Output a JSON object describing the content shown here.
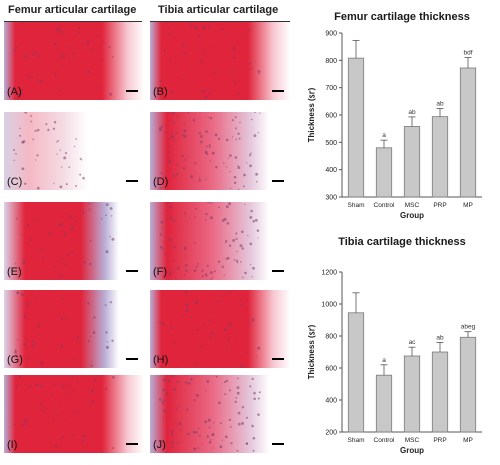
{
  "columns": {
    "femur_title": "Femur articular cartilage",
    "tibia_title": "Tibia articular cartilage"
  },
  "panels": [
    {
      "label": "(A)",
      "stain": "strong"
    },
    {
      "label": "(B)",
      "stain": "strong"
    },
    {
      "label": "(C)",
      "stain": "weak"
    },
    {
      "label": "(D)",
      "stain": "cellular"
    },
    {
      "label": "(E)",
      "stain": "medium"
    },
    {
      "label": "(F)",
      "stain": "cellular"
    },
    {
      "label": "(G)",
      "stain": "medium"
    },
    {
      "label": "(H)",
      "stain": "strong"
    },
    {
      "label": "(I)",
      "stain": "strong"
    },
    {
      "label": "(J)",
      "stain": "cellular"
    }
  ],
  "colors": {
    "bar_fill": "#c8c8c8",
    "bar_stroke": "#7a7a7a",
    "title_color": "#1a1a1a",
    "stain_red": "#e0243c",
    "stain_pink": "#f5b8c4",
    "stain_purple": "#b9aed6"
  },
  "chart_data": [
    {
      "type": "bar",
      "title": "Femur cartilage thickness",
      "xlabel": "Group",
      "ylabel": "Thickness (㏛)",
      "categories": [
        "Sham",
        "Control",
        "MSC",
        "PRP",
        "MP"
      ],
      "values": [
        808,
        480,
        558,
        594,
        772
      ],
      "errors": [
        65,
        28,
        35,
        30,
        38
      ],
      "annotations": [
        "",
        "a",
        "ab",
        "ab",
        "bdf"
      ],
      "ylim": [
        300,
        900
      ],
      "yticks": [
        300,
        400,
        500,
        600,
        700,
        800,
        900
      ],
      "grid": false
    },
    {
      "type": "bar",
      "title": "Tibia cartilage thickness",
      "xlabel": "Group",
      "ylabel": "Thickness (㏛)",
      "categories": [
        "Sham",
        "Control",
        "MSC",
        "PRP",
        "MP"
      ],
      "values": [
        945,
        555,
        675,
        700,
        792
      ],
      "errors": [
        125,
        65,
        55,
        60,
        35
      ],
      "annotations": [
        "",
        "a",
        "ac",
        "ab",
        "abeg"
      ],
      "ylim": [
        200,
        1200
      ],
      "yticks": [
        200,
        400,
        600,
        800,
        1000,
        1200
      ],
      "grid": false
    }
  ]
}
